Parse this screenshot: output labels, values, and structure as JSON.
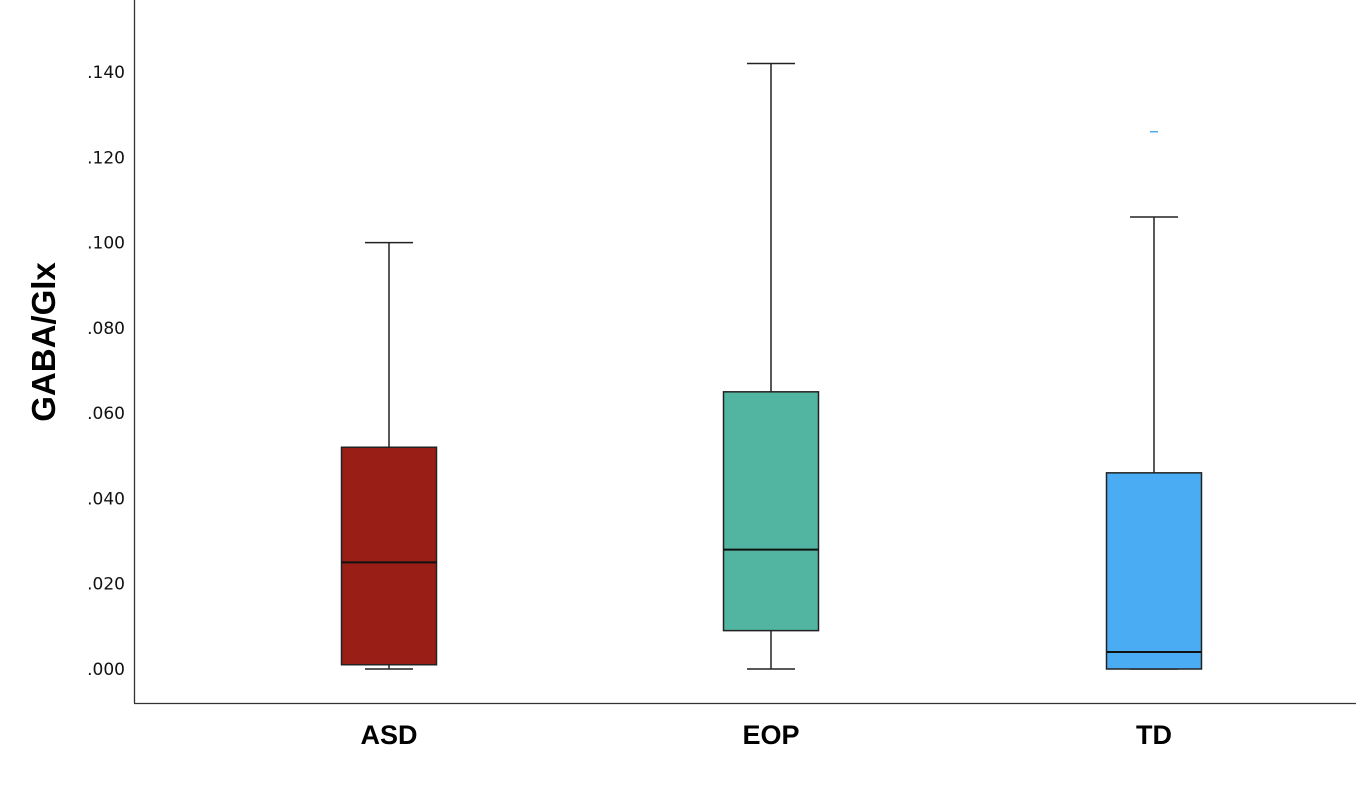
{
  "chart_data": {
    "type": "boxplot",
    "title": "",
    "xlabel": "",
    "ylabel": "GABA/Glx",
    "ylim": [
      -0.008,
      0.157
    ],
    "yticks": [
      ".000",
      ".020",
      ".040",
      ".060",
      ".080",
      ".100",
      ".120",
      ".140"
    ],
    "ytick_values": [
      0.0,
      0.02,
      0.04,
      0.06,
      0.08,
      0.1,
      0.12,
      0.14
    ],
    "categories": [
      "ASD",
      "EOP",
      "TD"
    ],
    "boxes": [
      {
        "category": "ASD",
        "min": 0.0,
        "q1": 0.001,
        "median": 0.025,
        "q3": 0.052,
        "max": 0.1,
        "outliers": [],
        "color": "#991e16"
      },
      {
        "category": "EOP",
        "min": 0.0,
        "q1": 0.009,
        "median": 0.028,
        "q3": 0.065,
        "max": 0.142,
        "outliers": [],
        "color": "#52b5a1"
      },
      {
        "category": "TD",
        "min": 0.0,
        "q1": 0.0,
        "median": 0.004,
        "q3": 0.046,
        "max": 0.106,
        "outliers": [
          0.126
        ],
        "color": "#4aacf2"
      }
    ],
    "grid": false,
    "legend": "none"
  }
}
